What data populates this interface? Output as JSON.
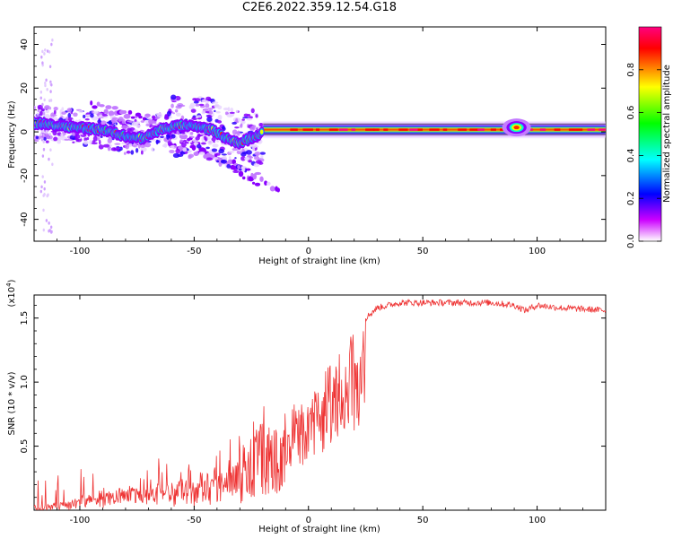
{
  "title": "C2E6.2022.359.12.54.G18",
  "chart_data": [
    {
      "type": "heatmap",
      "title": "C2E6.2022.359.12.54.G18",
      "xlabel": "Height of straight line (km)",
      "ylabel": "Frequency (Hz)",
      "xlim": [
        -120,
        130
      ],
      "ylim": [
        -50,
        48
      ],
      "x_ticks": [
        -100,
        -50,
        0,
        50,
        100
      ],
      "y_ticks": [
        -40,
        -20,
        0,
        20,
        40
      ],
      "grid": false,
      "colorbar": {
        "label": "Normalized spectral amplitude",
        "range": [
          0,
          1
        ],
        "ticks": [
          0.0,
          0.2,
          0.4,
          0.6,
          0.8
        ],
        "colormap": [
          "#ff0080",
          "#ff0000",
          "#ffff00",
          "#00ff00",
          "#00ffff",
          "#0000ff",
          "#cc00ff",
          "#ffffff"
        ]
      },
      "features": {
        "main_line": [
          {
            "x": -120,
            "f": 4
          },
          {
            "x": -110,
            "f": 3
          },
          {
            "x": -100,
            "f": 2
          },
          {
            "x": -90,
            "f": 1
          },
          {
            "x": -80,
            "f": -2
          },
          {
            "x": -72,
            "f": -3
          },
          {
            "x": -65,
            "f": 1
          },
          {
            "x": -55,
            "f": 3
          },
          {
            "x": -48,
            "f": 2
          },
          {
            "x": -42,
            "f": 1
          },
          {
            "x": -36,
            "f": -3
          },
          {
            "x": -30,
            "f": -5
          },
          {
            "x": -25,
            "f": -3
          },
          {
            "x": -20,
            "f": 0
          },
          {
            "x": -10,
            "f": 1
          },
          {
            "x": 0,
            "f": 1
          },
          {
            "x": 130,
            "f": 1
          }
        ],
        "descending_branches": [
          [
            {
              "x": -95,
              "f": 12
            },
            {
              "x": -70,
              "f": 6
            },
            {
              "x": -50,
              "f": -5
            },
            {
              "x": -35,
              "f": -15
            },
            {
              "x": -22,
              "f": -24
            }
          ],
          [
            {
              "x": -60,
              "f": -5
            },
            {
              "x": -40,
              "f": -12
            },
            {
              "x": -25,
              "f": -18
            },
            {
              "x": -12,
              "f": -28
            }
          ]
        ]
      }
    },
    {
      "type": "line",
      "xlabel": "Height of straight line (km)",
      "ylabel": "SNR (10 * v/v)",
      "y_multiplier": "(x10",
      "y_multiplier_exp": "4",
      "y_multiplier_close": ")",
      "xlim": [
        -120,
        130
      ],
      "ylim": [
        0,
        1.68
      ],
      "x_ticks": [
        -100,
        -50,
        0,
        50,
        100
      ],
      "y_ticks": [
        0.5,
        1.0,
        1.5
      ],
      "y_tick_labels": [
        "0.5",
        "1.0",
        "1.5"
      ],
      "grid": false,
      "color": "#ee3333",
      "series": [
        {
          "x": [
            -120,
            -110,
            -100,
            -90,
            -80,
            -70,
            -60,
            -50,
            -45,
            -40,
            -35,
            -30,
            -25,
            -20,
            -15,
            -10,
            -5,
            0,
            5,
            10,
            15,
            20,
            25,
            30,
            40,
            50,
            60,
            70,
            80,
            90,
            95,
            100,
            110,
            120,
            130
          ],
          "values": [
            0.02,
            0.05,
            0.1,
            0.14,
            0.18,
            0.2,
            0.22,
            0.3,
            0.3,
            0.32,
            0.38,
            0.48,
            0.55,
            0.7,
            0.75,
            0.8,
            0.82,
            0.9,
            1.0,
            1.2,
            1.3,
            1.42,
            1.5,
            1.58,
            1.62,
            1.62,
            1.62,
            1.62,
            1.62,
            1.6,
            1.56,
            1.6,
            1.58,
            1.57,
            1.56
          ]
        }
      ]
    }
  ]
}
